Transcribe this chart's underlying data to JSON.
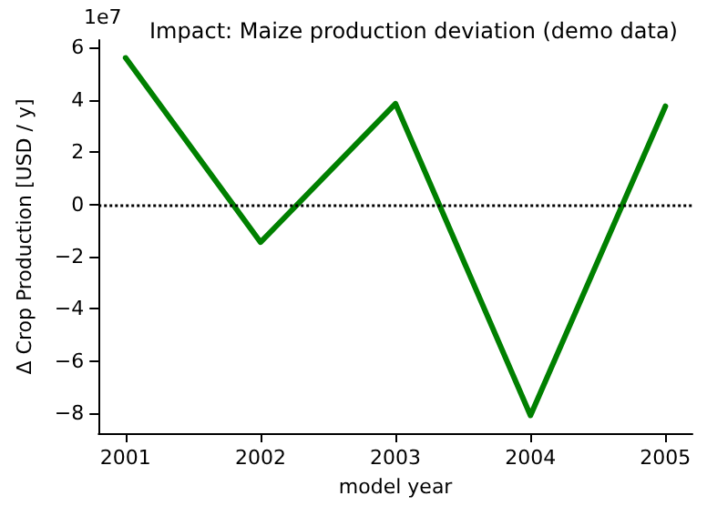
{
  "chart_data": {
    "type": "line",
    "title": "Impact: Maize production deviation (demo data)",
    "xlabel": "model year",
    "ylabel": "Δ Crop Production [USD / y]",
    "x": [
      2001,
      2002,
      2003,
      2004,
      2005
    ],
    "series": [
      {
        "color": "#008000",
        "values": [
          5.6,
          -1.45,
          3.85,
          -8.07,
          3.75
        ]
      }
    ],
    "xlim": [
      2000.8,
      2005.2
    ],
    "xticks": [
      2001,
      2002,
      2003,
      2004,
      2005
    ],
    "ylim": [
      -8.75,
      6.28
    ],
    "yticks": [
      -8,
      -6,
      -4,
      -2,
      0,
      2,
      4,
      6
    ],
    "annotations": [
      "1e7"
    ],
    "ref_lines": [
      {
        "axis": "y",
        "value": 0,
        "color": "#000000",
        "line_style": "dotted"
      }
    ],
    "grid": false,
    "marker": "none",
    "line_style": "solid"
  }
}
